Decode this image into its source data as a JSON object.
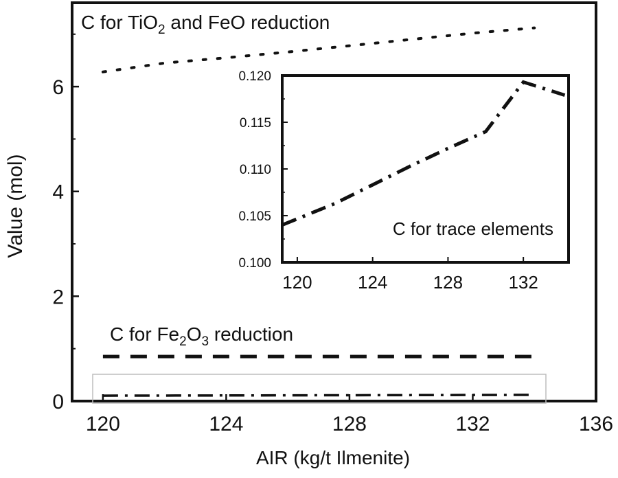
{
  "chart_data": [
    {
      "id": "main",
      "type": "line",
      "xlabel": "AIR (kg/t Ilmenite)",
      "ylabel": "Value (mol)",
      "xlim": [
        119,
        136
      ],
      "ylim": [
        0,
        7.6
      ],
      "xticks": [
        120,
        124,
        128,
        132,
        136
      ],
      "yticks": [
        0,
        2,
        4,
        6
      ],
      "series": [
        {
          "name": "C for TiO2 and FeO reduction",
          "label_parts": [
            "C for TiO",
            "2",
            " and FeO reduction"
          ],
          "style": "dotted",
          "x": [
            120,
            122,
            124,
            126,
            128,
            130,
            132,
            134
          ],
          "values": [
            6.28,
            6.45,
            6.55,
            6.66,
            6.78,
            6.9,
            7.02,
            7.12
          ]
        },
        {
          "name": "C for Fe2O3 reduction",
          "label_parts": [
            "C for Fe",
            "2",
            "O",
            "3",
            " reduction"
          ],
          "style": "dashed",
          "x": [
            120,
            134
          ],
          "values": [
            0.85,
            0.85
          ]
        },
        {
          "name": "C for trace elements",
          "style": "dash-dot",
          "x": [
            120,
            134
          ],
          "values": [
            0.104,
            0.118
          ]
        }
      ]
    },
    {
      "id": "inset",
      "type": "line",
      "xlim": [
        119.2,
        134.4
      ],
      "ylim": [
        0.1,
        0.12
      ],
      "xticks": [
        120,
        124,
        128,
        132
      ],
      "yticks": [
        0.1,
        0.105,
        0.11,
        0.115,
        0.12
      ],
      "ytick_labels": [
        "0.100",
        "0.105",
        "0.110",
        "0.115",
        "0.120"
      ],
      "series": [
        {
          "name": "C for trace elements",
          "style": "dash-dot",
          "x": [
            119.2,
            122,
            124,
            126,
            128,
            130,
            132,
            134.2
          ],
          "values": [
            0.104,
            0.1063,
            0.1083,
            0.1103,
            0.1122,
            0.114,
            0.1193,
            0.1179
          ]
        }
      ]
    }
  ]
}
